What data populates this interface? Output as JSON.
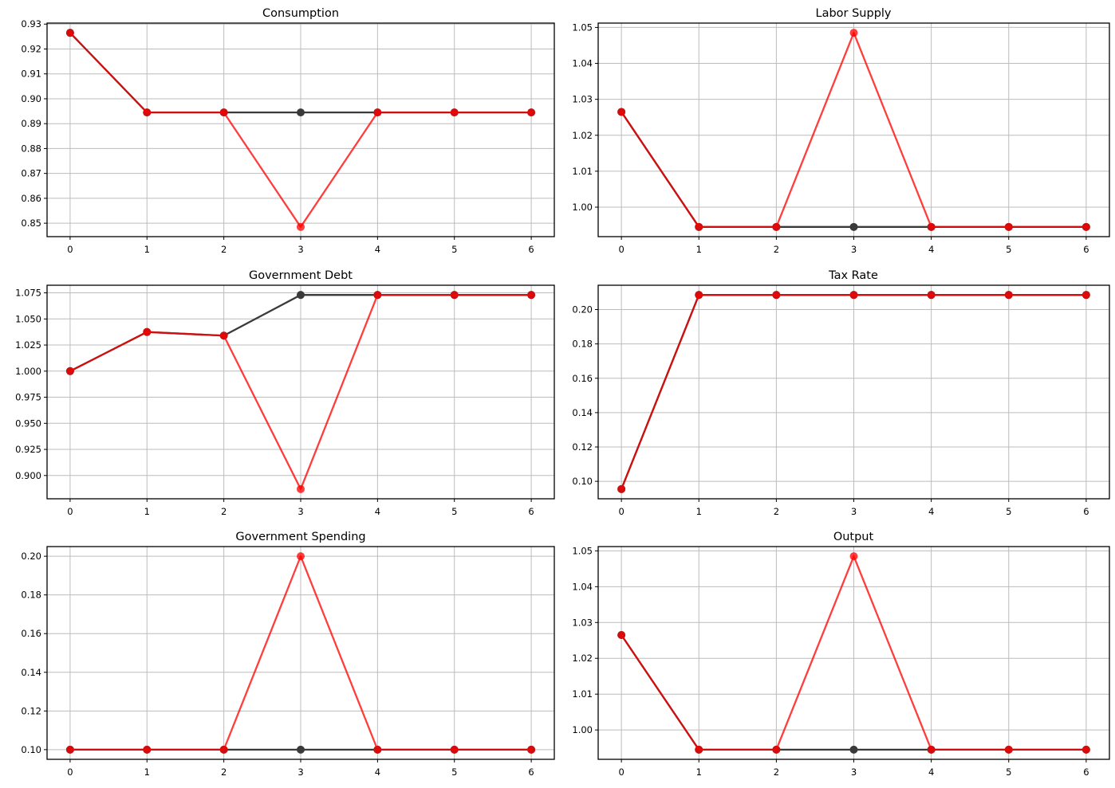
{
  "figure": {
    "background": "#ffffff",
    "text_color": "#000000",
    "grid_color": "#bcbcbc",
    "spine_color": "#000000",
    "series_colors": {
      "black": "#3a3a3a",
      "red": "#ff0000"
    },
    "red_alpha": 0.76,
    "x_ticks": [
      0,
      1,
      2,
      3,
      4,
      5,
      6
    ]
  },
  "chart_data": [
    {
      "type": "line",
      "title": "Consumption",
      "x": [
        0,
        1,
        2,
        3,
        4,
        5,
        6
      ],
      "xlim": [
        -0.3,
        6.3
      ],
      "ylim": [
        0.8446,
        0.9304
      ],
      "y_ticks": [
        0.85,
        0.86,
        0.87,
        0.88,
        0.89,
        0.9,
        0.91,
        0.92,
        0.93
      ],
      "y_decimals": 2,
      "grid": true,
      "legend": "none",
      "series": [
        {
          "name": "black",
          "values": [
            0.9265,
            0.8945,
            0.8945,
            0.8945,
            0.8945,
            0.8945,
            0.8945
          ]
        },
        {
          "name": "red",
          "values": [
            0.9265,
            0.8945,
            0.8945,
            0.8485,
            0.8945,
            0.8945,
            0.8945
          ]
        }
      ]
    },
    {
      "type": "line",
      "title": "Labor Supply",
      "x": [
        0,
        1,
        2,
        3,
        4,
        5,
        6
      ],
      "xlim": [
        -0.3,
        6.3
      ],
      "ylim": [
        0.9918,
        1.0512
      ],
      "y_ticks": [
        1.0,
        1.01,
        1.02,
        1.03,
        1.04,
        1.05
      ],
      "y_decimals": 2,
      "grid": true,
      "legend": "none",
      "series": [
        {
          "name": "black",
          "values": [
            1.0265,
            0.9945,
            0.9945,
            0.9945,
            0.9945,
            0.9945,
            0.9945
          ]
        },
        {
          "name": "red",
          "values": [
            1.0265,
            0.9945,
            0.9945,
            1.0485,
            0.9945,
            0.9945,
            0.9945
          ]
        }
      ]
    },
    {
      "type": "line",
      "title": "Government Debt",
      "x": [
        0,
        1,
        2,
        3,
        4,
        5,
        6
      ],
      "xlim": [
        -0.3,
        6.3
      ],
      "ylim": [
        0.8777,
        1.0823
      ],
      "y_ticks": [
        0.9,
        0.925,
        0.95,
        0.975,
        1.0,
        1.025,
        1.05,
        1.075
      ],
      "y_decimals": 3,
      "grid": true,
      "legend": "none",
      "series": [
        {
          "name": "black",
          "values": [
            1.0,
            1.0375,
            1.034,
            1.073,
            1.073,
            1.073,
            1.073
          ]
        },
        {
          "name": "red",
          "values": [
            1.0,
            1.0375,
            1.034,
            0.887,
            1.073,
            1.073,
            1.073
          ]
        }
      ]
    },
    {
      "type": "line",
      "title": "Tax Rate",
      "x": [
        0,
        1,
        2,
        3,
        4,
        5,
        6
      ],
      "xlim": [
        -0.3,
        6.3
      ],
      "ylim": [
        0.08985,
        0.21415
      ],
      "y_ticks": [
        0.1,
        0.12,
        0.14,
        0.16,
        0.18,
        0.2
      ],
      "y_decimals": 2,
      "grid": true,
      "legend": "none",
      "series": [
        {
          "name": "black",
          "values": [
            0.0955,
            0.2085,
            0.2085,
            0.2085,
            0.2085,
            0.2085,
            0.2085
          ]
        },
        {
          "name": "red",
          "values": [
            0.0955,
            0.2085,
            0.2085,
            0.2085,
            0.2085,
            0.2085,
            0.2085
          ]
        }
      ]
    },
    {
      "type": "line",
      "title": "Government Spending",
      "x": [
        0,
        1,
        2,
        3,
        4,
        5,
        6
      ],
      "xlim": [
        -0.3,
        6.3
      ],
      "ylim": [
        0.095,
        0.205
      ],
      "y_ticks": [
        0.1,
        0.12,
        0.14,
        0.16,
        0.18,
        0.2
      ],
      "y_decimals": 2,
      "grid": true,
      "legend": "none",
      "series": [
        {
          "name": "black",
          "values": [
            0.1,
            0.1,
            0.1,
            0.1,
            0.1,
            0.1,
            0.1
          ]
        },
        {
          "name": "red",
          "values": [
            0.1,
            0.1,
            0.1,
            0.2,
            0.1,
            0.1,
            0.1
          ]
        }
      ]
    },
    {
      "type": "line",
      "title": "Output",
      "x": [
        0,
        1,
        2,
        3,
        4,
        5,
        6
      ],
      "xlim": [
        -0.3,
        6.3
      ],
      "ylim": [
        0.9918,
        1.0512
      ],
      "y_ticks": [
        1.0,
        1.01,
        1.02,
        1.03,
        1.04,
        1.05
      ],
      "y_decimals": 2,
      "grid": true,
      "legend": "none",
      "series": [
        {
          "name": "black",
          "values": [
            1.0265,
            0.9945,
            0.9945,
            0.9945,
            0.9945,
            0.9945,
            0.9945
          ]
        },
        {
          "name": "red",
          "values": [
            1.0265,
            0.9945,
            0.9945,
            1.0485,
            0.9945,
            0.9945,
            0.9945
          ]
        }
      ]
    }
  ]
}
